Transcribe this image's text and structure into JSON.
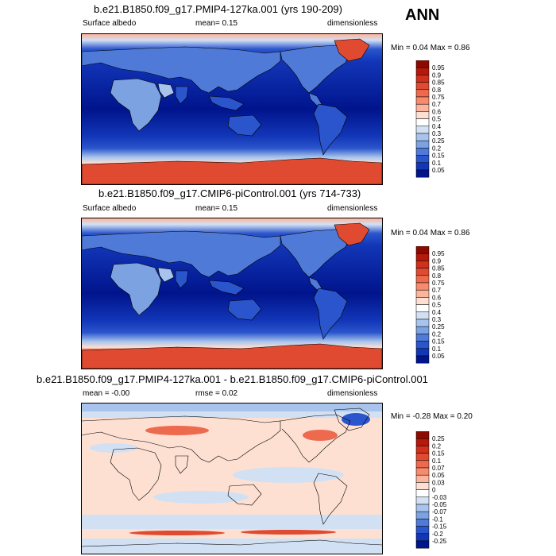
{
  "season_label": "ANN",
  "panels": [
    {
      "title": "b.e21.B1850.f09_g17.PMIP4-127ka.001 (yrs 190-209)",
      "left_label": "Surface albedo",
      "mid_label": "mean=  0.15",
      "right_label": "dimensionless",
      "minmax": "Min =  0.04 Max =  0.86",
      "colorbar": {
        "labels": [
          "0.95",
          "0.9",
          "0.85",
          "0.8",
          "0.75",
          "0.7",
          "0.6",
          "0.5",
          "0.4",
          "0.3",
          "0.25",
          "0.2",
          "0.15",
          "0.1",
          "0.05"
        ],
        "colors": [
          "#8c0a00",
          "#b4190c",
          "#d0301c",
          "#e04a30",
          "#ed6a4e",
          "#f68b6e",
          "#fcb49c",
          "#fde0d2",
          "#ffffff",
          "#d2e0f4",
          "#a8c4ec",
          "#7ca2e2",
          "#4f7ad8",
          "#2a55cc",
          "#1236b8",
          "#00148c"
        ]
      }
    },
    {
      "title": "b.e21.B1850.f09_g17.CMIP6-piControl.001 (yrs 714-733)",
      "left_label": "Surface albedo",
      "mid_label": "mean=  0.15",
      "right_label": "dimensionless",
      "minmax": "Min =  0.04 Max =  0.86",
      "colorbar": {
        "labels": [
          "0.95",
          "0.9",
          "0.85",
          "0.8",
          "0.75",
          "0.7",
          "0.6",
          "0.5",
          "0.4",
          "0.3",
          "0.25",
          "0.2",
          "0.15",
          "0.1",
          "0.05"
        ],
        "colors": [
          "#8c0a00",
          "#b4190c",
          "#d0301c",
          "#e04a30",
          "#ed6a4e",
          "#f68b6e",
          "#fcb49c",
          "#fde0d2",
          "#ffffff",
          "#d2e0f4",
          "#a8c4ec",
          "#7ca2e2",
          "#4f7ad8",
          "#2a55cc",
          "#1236b8",
          "#00148c"
        ]
      }
    },
    {
      "title": "b.e21.B1850.f09_g17.PMIP4-127ka.001 - b.e21.B1850.f09_g17.CMIP6-piControl.001",
      "left_label": "mean =  -0.00",
      "mid_label": "rmse =  0.02",
      "right_label": "dimensionless",
      "minmax": "Min =  -0.28 Max =  0.20",
      "colorbar": {
        "labels": [
          "0.25",
          "0.2",
          "0.15",
          "0.1",
          "0.07",
          "0.05",
          "0.03",
          "0",
          "-0.03",
          "-0.05",
          "-0.07",
          "-0.1",
          "-0.15",
          "-0.2",
          "-0.25"
        ],
        "colors": [
          "#8c0a00",
          "#b4190c",
          "#d0301c",
          "#e04a30",
          "#ed6a4e",
          "#f68b6e",
          "#fcb49c",
          "#fde0d2",
          "#ffffff",
          "#d2e0f4",
          "#a8c4ec",
          "#7ca2e2",
          "#4f7ad8",
          "#2a55cc",
          "#1236b8",
          "#00148c"
        ]
      }
    }
  ]
}
